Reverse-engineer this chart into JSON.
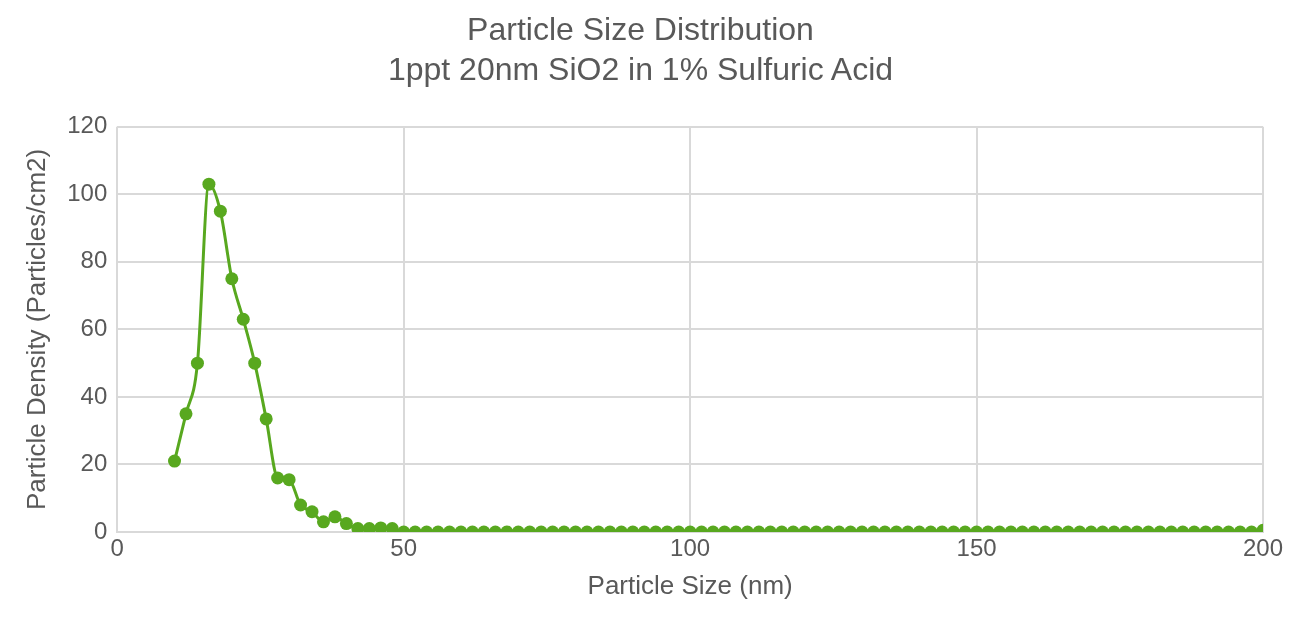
{
  "chart_data": {
    "type": "line",
    "title": "Particle Size Distribution",
    "subtitle": "1ppt 20nm SiO2 in 1% Sulfuric Acid",
    "xlabel": "Particle Size (nm)",
    "ylabel": "Particle Density (Particles/cm2)",
    "x": [
      10,
      12,
      14,
      16,
      18,
      20,
      22,
      24,
      26,
      28,
      30,
      32,
      34,
      36,
      38,
      40,
      42,
      44,
      46,
      48,
      50,
      52,
      54,
      56,
      58,
      60,
      62,
      64,
      66,
      68,
      70,
      72,
      74,
      76,
      78,
      80,
      82,
      84,
      86,
      88,
      90,
      92,
      94,
      96,
      98,
      100,
      102,
      104,
      106,
      108,
      110,
      112,
      114,
      116,
      118,
      120,
      122,
      124,
      126,
      128,
      130,
      132,
      134,
      136,
      138,
      140,
      142,
      144,
      146,
      148,
      150,
      152,
      154,
      156,
      158,
      160,
      162,
      164,
      166,
      168,
      170,
      172,
      174,
      176,
      178,
      180,
      182,
      184,
      186,
      188,
      190,
      192,
      194,
      196,
      198,
      200
    ],
    "series": [
      {
        "color": "#58a81f",
        "values": [
          21,
          35,
          50,
          103,
          95,
          75,
          63,
          50,
          33.5,
          16,
          15.5,
          8,
          6,
          3,
          4.5,
          2.5,
          1,
          1,
          1.2,
          1,
          0,
          0,
          0,
          0,
          0,
          0,
          0,
          0,
          0,
          0,
          0,
          0,
          0,
          0,
          0,
          0,
          0,
          0,
          0,
          0,
          0,
          0,
          0,
          0,
          0,
          0,
          0,
          0,
          0,
          0,
          0,
          0,
          0,
          0,
          0,
          0,
          0,
          0,
          0,
          0,
          0,
          0,
          0,
          0,
          0,
          0,
          0,
          0,
          0,
          0,
          0,
          0,
          0,
          0,
          0,
          0,
          0,
          0,
          0,
          0,
          0,
          0,
          0,
          0,
          0,
          0,
          0,
          0,
          0,
          0,
          0,
          0,
          0,
          0,
          0,
          0.5
        ]
      }
    ],
    "xlim": [
      0,
      200
    ],
    "xticks": [
      0,
      50,
      100,
      150,
      200
    ],
    "ylim": [
      0,
      120
    ],
    "yticks": [
      0,
      20,
      40,
      60,
      80,
      100,
      120
    ],
    "grid": true,
    "legend": false,
    "marker": "circle",
    "line_style": "solid"
  }
}
